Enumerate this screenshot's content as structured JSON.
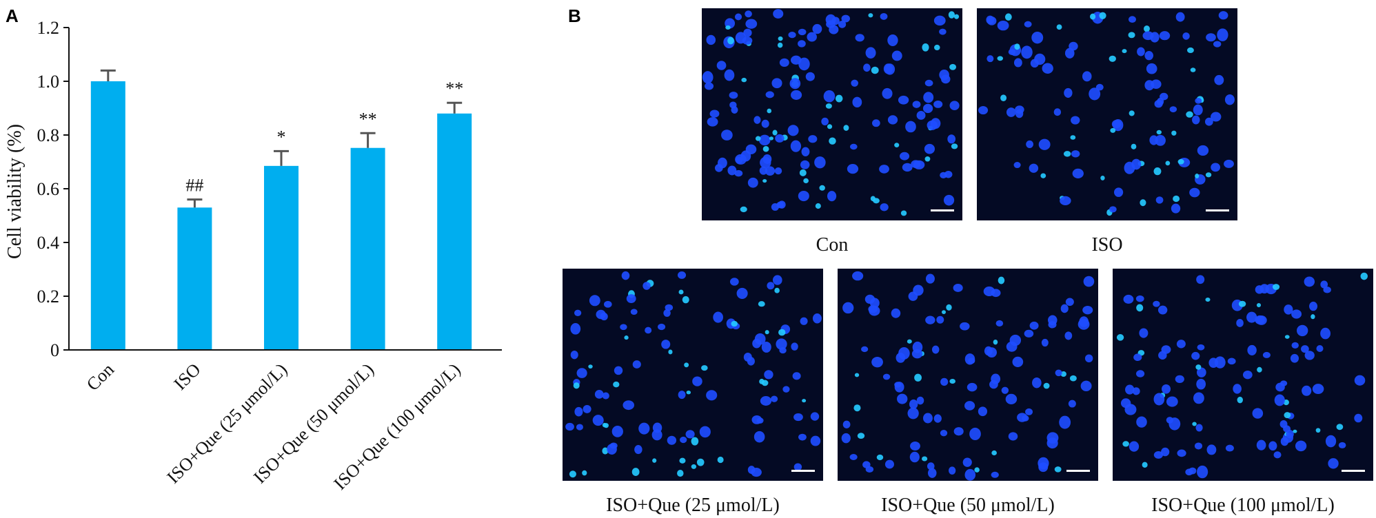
{
  "panels": {
    "a_label": "A",
    "b_label": "B"
  },
  "chart_data": {
    "type": "bar",
    "categories": [
      "Con",
      "ISO",
      "ISO+Que (25 μmol/L)",
      "ISO+Que (50 μmol/L)",
      "ISO+Que (100 μmol/L)"
    ],
    "values": [
      1.0,
      0.53,
      0.685,
      0.752,
      0.88
    ],
    "errors": [
      0.04,
      0.03,
      0.055,
      0.055,
      0.04
    ],
    "significance": [
      "",
      "##",
      "*",
      "**",
      "**"
    ],
    "ylabel": "Cell viability (%)",
    "ylim": [
      0,
      1.2
    ],
    "yticks": [
      0,
      0.2,
      0.4,
      0.6,
      0.8,
      1.0,
      1.2
    ],
    "ytick_labels": [
      "0",
      "0.2",
      "0.4",
      "0.6",
      "0.8",
      "1.0",
      "1.2"
    ],
    "bar_color": "#00aeef",
    "error_color": "#555555"
  },
  "micrographs": [
    {
      "caption": "Con",
      "row": "top"
    },
    {
      "caption": "ISO",
      "row": "top"
    },
    {
      "caption": "ISO+Que (25 μmol/L)",
      "row": "bottom"
    },
    {
      "caption": "ISO+Que (50 μmol/L)",
      "row": "bottom"
    },
    {
      "caption": "ISO+Que (100 μmol/L)",
      "row": "bottom"
    }
  ],
  "colors": {
    "micrograph_background": "#040a24",
    "nucleus": "#1e4dff",
    "nucleus_bright": "#25c9ff",
    "scale_bar": "#ffffff"
  }
}
